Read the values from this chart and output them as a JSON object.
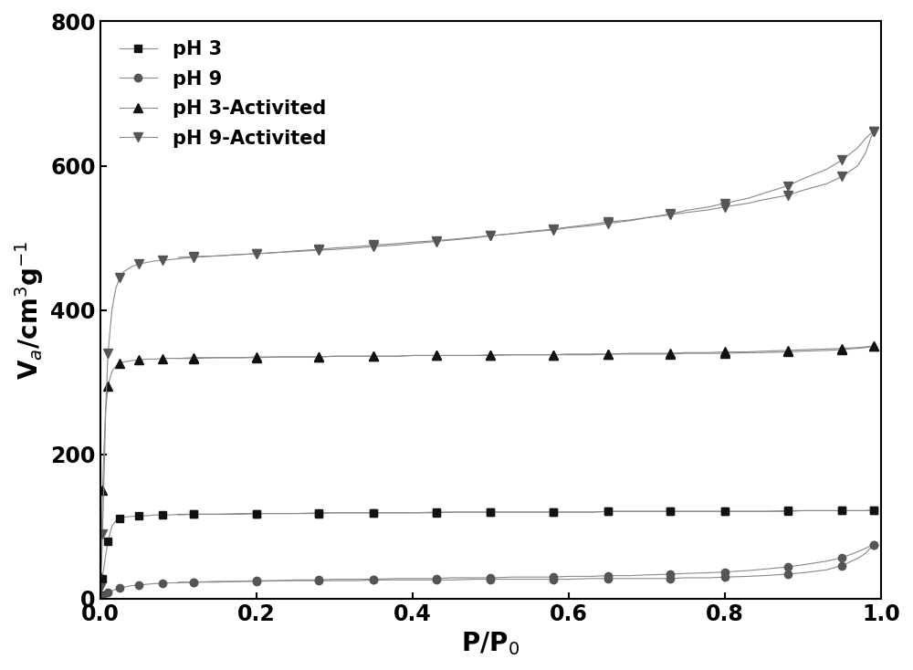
{
  "legend_labels": [
    "pH 3",
    "pH 9",
    "pH 3-Activited",
    "pH 9-Activited"
  ],
  "xlim": [
    0.0,
    1.0
  ],
  "ylim": [
    0,
    800
  ],
  "yticks": [
    0,
    200,
    400,
    600,
    800
  ],
  "xticks": [
    0.0,
    0.2,
    0.4,
    0.6,
    0.8,
    1.0
  ],
  "series": {
    "pH3": {
      "adsorption_x": [
        0.0005,
        0.001,
        0.002,
        0.003,
        0.005,
        0.007,
        0.01,
        0.015,
        0.02,
        0.025,
        0.03,
        0.04,
        0.05,
        0.06,
        0.07,
        0.08,
        0.09,
        0.1,
        0.12,
        0.15,
        0.18,
        0.2,
        0.23,
        0.25,
        0.28,
        0.3,
        0.33,
        0.35,
        0.38,
        0.4,
        0.43,
        0.45,
        0.48,
        0.5,
        0.53,
        0.55,
        0.58,
        0.6,
        0.63,
        0.65,
        0.68,
        0.7,
        0.73,
        0.75,
        0.78,
        0.8,
        0.83,
        0.85,
        0.88,
        0.9,
        0.93,
        0.95,
        0.97,
        0.98,
        0.99
      ],
      "adsorption_y": [
        5,
        10,
        18,
        28,
        45,
        60,
        80,
        100,
        108,
        111,
        113,
        114,
        115,
        115,
        116,
        116,
        116,
        117,
        117,
        117,
        118,
        118,
        118,
        118,
        119,
        119,
        119,
        119,
        119,
        119,
        120,
        120,
        120,
        120,
        120,
        120,
        120,
        120,
        120,
        121,
        121,
        121,
        121,
        121,
        121,
        121,
        121,
        121,
        122,
        122,
        122,
        122,
        122,
        122,
        123
      ],
      "desorption_x": [
        0.99,
        0.98,
        0.97,
        0.95,
        0.93,
        0.9,
        0.88,
        0.85,
        0.83,
        0.8,
        0.78,
        0.75,
        0.73,
        0.7,
        0.68,
        0.65,
        0.63,
        0.6,
        0.58,
        0.55,
        0.53,
        0.5,
        0.48,
        0.45,
        0.43,
        0.4,
        0.38,
        0.35,
        0.33,
        0.3,
        0.28,
        0.25,
        0.23,
        0.2,
        0.18,
        0.15,
        0.12,
        0.1
      ],
      "desorption_y": [
        123,
        122,
        122,
        122,
        122,
        122,
        121,
        121,
        121,
        121,
        121,
        121,
        121,
        121,
        121,
        121,
        120,
        120,
        120,
        120,
        120,
        120,
        120,
        120,
        119,
        119,
        119,
        119,
        119,
        119,
        118,
        118,
        118,
        118,
        117,
        117,
        117,
        116
      ],
      "marker": "s",
      "color": "#111111",
      "markersize": 6,
      "markevery": 3
    },
    "pH9": {
      "adsorption_x": [
        0.0005,
        0.001,
        0.002,
        0.003,
        0.005,
        0.007,
        0.01,
        0.015,
        0.02,
        0.025,
        0.03,
        0.04,
        0.05,
        0.06,
        0.07,
        0.08,
        0.09,
        0.1,
        0.12,
        0.15,
        0.18,
        0.2,
        0.23,
        0.25,
        0.28,
        0.3,
        0.33,
        0.35,
        0.38,
        0.4,
        0.43,
        0.45,
        0.48,
        0.5,
        0.53,
        0.55,
        0.58,
        0.6,
        0.63,
        0.65,
        0.68,
        0.7,
        0.73,
        0.75,
        0.78,
        0.8,
        0.83,
        0.85,
        0.88,
        0.9,
        0.93,
        0.95,
        0.97,
        0.98,
        0.99
      ],
      "adsorption_y": [
        1,
        2,
        3,
        4,
        6,
        7,
        9,
        11,
        13,
        15,
        16,
        18,
        19,
        20,
        21,
        21,
        22,
        22,
        23,
        23,
        24,
        24,
        25,
        25,
        25,
        25,
        25,
        26,
        26,
        26,
        26,
        26,
        27,
        27,
        27,
        27,
        27,
        27,
        28,
        28,
        28,
        28,
        28,
        29,
        29,
        30,
        31,
        32,
        34,
        36,
        40,
        46,
        56,
        63,
        75
      ],
      "desorption_x": [
        0.99,
        0.98,
        0.97,
        0.95,
        0.93,
        0.9,
        0.88,
        0.85,
        0.83,
        0.8,
        0.78,
        0.75,
        0.73,
        0.7,
        0.68,
        0.65,
        0.63,
        0.6,
        0.58,
        0.55,
        0.53,
        0.5,
        0.48,
        0.45,
        0.43,
        0.4,
        0.38,
        0.35,
        0.33,
        0.3,
        0.28,
        0.25,
        0.23,
        0.2,
        0.18,
        0.15,
        0.12,
        0.1
      ],
      "desorption_y": [
        75,
        70,
        65,
        57,
        52,
        47,
        44,
        41,
        39,
        37,
        36,
        35,
        34,
        33,
        32,
        32,
        31,
        31,
        30,
        30,
        30,
        29,
        29,
        29,
        28,
        28,
        28,
        27,
        27,
        27,
        26,
        26,
        25,
        25,
        24,
        24,
        23,
        23
      ],
      "marker": "o",
      "color": "#555555",
      "markersize": 6,
      "markevery": 3
    },
    "pH3_act": {
      "adsorption_x": [
        0.0005,
        0.001,
        0.002,
        0.003,
        0.005,
        0.007,
        0.01,
        0.015,
        0.02,
        0.025,
        0.03,
        0.04,
        0.05,
        0.06,
        0.07,
        0.08,
        0.09,
        0.1,
        0.12,
        0.15,
        0.18,
        0.2,
        0.23,
        0.25,
        0.28,
        0.3,
        0.33,
        0.35,
        0.38,
        0.4,
        0.43,
        0.45,
        0.48,
        0.5,
        0.53,
        0.55,
        0.58,
        0.6,
        0.63,
        0.65,
        0.68,
        0.7,
        0.73,
        0.75,
        0.78,
        0.8,
        0.83,
        0.85,
        0.88,
        0.9,
        0.93,
        0.95,
        0.97,
        0.98,
        0.99
      ],
      "adsorption_y": [
        30,
        60,
        100,
        150,
        210,
        260,
        295,
        315,
        322,
        326,
        328,
        330,
        331,
        332,
        332,
        333,
        333,
        333,
        334,
        334,
        334,
        335,
        335,
        335,
        335,
        336,
        336,
        336,
        336,
        337,
        337,
        337,
        337,
        337,
        338,
        338,
        338,
        338,
        338,
        339,
        339,
        339,
        339,
        340,
        340,
        340,
        341,
        341,
        342,
        343,
        344,
        345,
        347,
        348,
        350
      ],
      "desorption_x": [
        0.99,
        0.98,
        0.97,
        0.95,
        0.93,
        0.9,
        0.88,
        0.85,
        0.83,
        0.8,
        0.78,
        0.75,
        0.73,
        0.7,
        0.68,
        0.65,
        0.63,
        0.6,
        0.58,
        0.55,
        0.53,
        0.5,
        0.48,
        0.45,
        0.43,
        0.4,
        0.38,
        0.35,
        0.33,
        0.3,
        0.28,
        0.25,
        0.23,
        0.2,
        0.18,
        0.15,
        0.12,
        0.1
      ],
      "desorption_y": [
        350,
        349,
        348,
        347,
        346,
        345,
        344,
        343,
        342,
        342,
        341,
        341,
        340,
        340,
        340,
        339,
        339,
        339,
        338,
        338,
        338,
        338,
        337,
        337,
        337,
        337,
        336,
        336,
        336,
        336,
        335,
        335,
        335,
        334,
        334,
        334,
        333,
        333
      ],
      "marker": "^",
      "color": "#111111",
      "markersize": 7,
      "markevery": 3
    },
    "pH9_act": {
      "adsorption_x": [
        0.0005,
        0.001,
        0.002,
        0.003,
        0.005,
        0.007,
        0.01,
        0.015,
        0.02,
        0.025,
        0.03,
        0.04,
        0.05,
        0.06,
        0.07,
        0.08,
        0.09,
        0.1,
        0.12,
        0.15,
        0.18,
        0.2,
        0.23,
        0.25,
        0.28,
        0.3,
        0.33,
        0.35,
        0.38,
        0.4,
        0.43,
        0.45,
        0.48,
        0.5,
        0.53,
        0.55,
        0.58,
        0.6,
        0.63,
        0.65,
        0.68,
        0.7,
        0.73,
        0.75,
        0.78,
        0.8,
        0.83,
        0.85,
        0.88,
        0.9,
        0.93,
        0.95,
        0.97,
        0.98,
        0.99
      ],
      "adsorption_y": [
        15,
        30,
        55,
        90,
        170,
        260,
        340,
        400,
        430,
        445,
        453,
        460,
        464,
        466,
        468,
        469,
        470,
        471,
        473,
        475,
        477,
        478,
        480,
        481,
        483,
        484,
        486,
        488,
        490,
        492,
        495,
        497,
        500,
        503,
        506,
        509,
        512,
        515,
        519,
        522,
        525,
        528,
        532,
        535,
        539,
        543,
        548,
        553,
        559,
        566,
        575,
        585,
        600,
        618,
        648
      ],
      "desorption_x": [
        0.99,
        0.98,
        0.97,
        0.95,
        0.93,
        0.9,
        0.88,
        0.85,
        0.83,
        0.8,
        0.78,
        0.75,
        0.73,
        0.7,
        0.68,
        0.65,
        0.63,
        0.6,
        0.58,
        0.55,
        0.53,
        0.5,
        0.48,
        0.45,
        0.43,
        0.4,
        0.38,
        0.35,
        0.33,
        0.3,
        0.28,
        0.25,
        0.23,
        0.2,
        0.18,
        0.15,
        0.12,
        0.1
      ],
      "desorption_y": [
        648,
        638,
        625,
        608,
        595,
        582,
        572,
        562,
        555,
        548,
        543,
        538,
        533,
        528,
        524,
        520,
        517,
        514,
        511,
        508,
        506,
        503,
        501,
        498,
        496,
        494,
        492,
        490,
        488,
        486,
        484,
        482,
        480,
        478,
        477,
        475,
        474,
        473
      ],
      "marker": "v",
      "color": "#555555",
      "markersize": 7,
      "markevery": 3
    }
  },
  "line_style": "-",
  "line_width": 0.8,
  "line_color_all": "#888888",
  "background_color": "#ffffff",
  "font_size_label": 20,
  "font_size_tick": 17,
  "font_size_legend": 15
}
